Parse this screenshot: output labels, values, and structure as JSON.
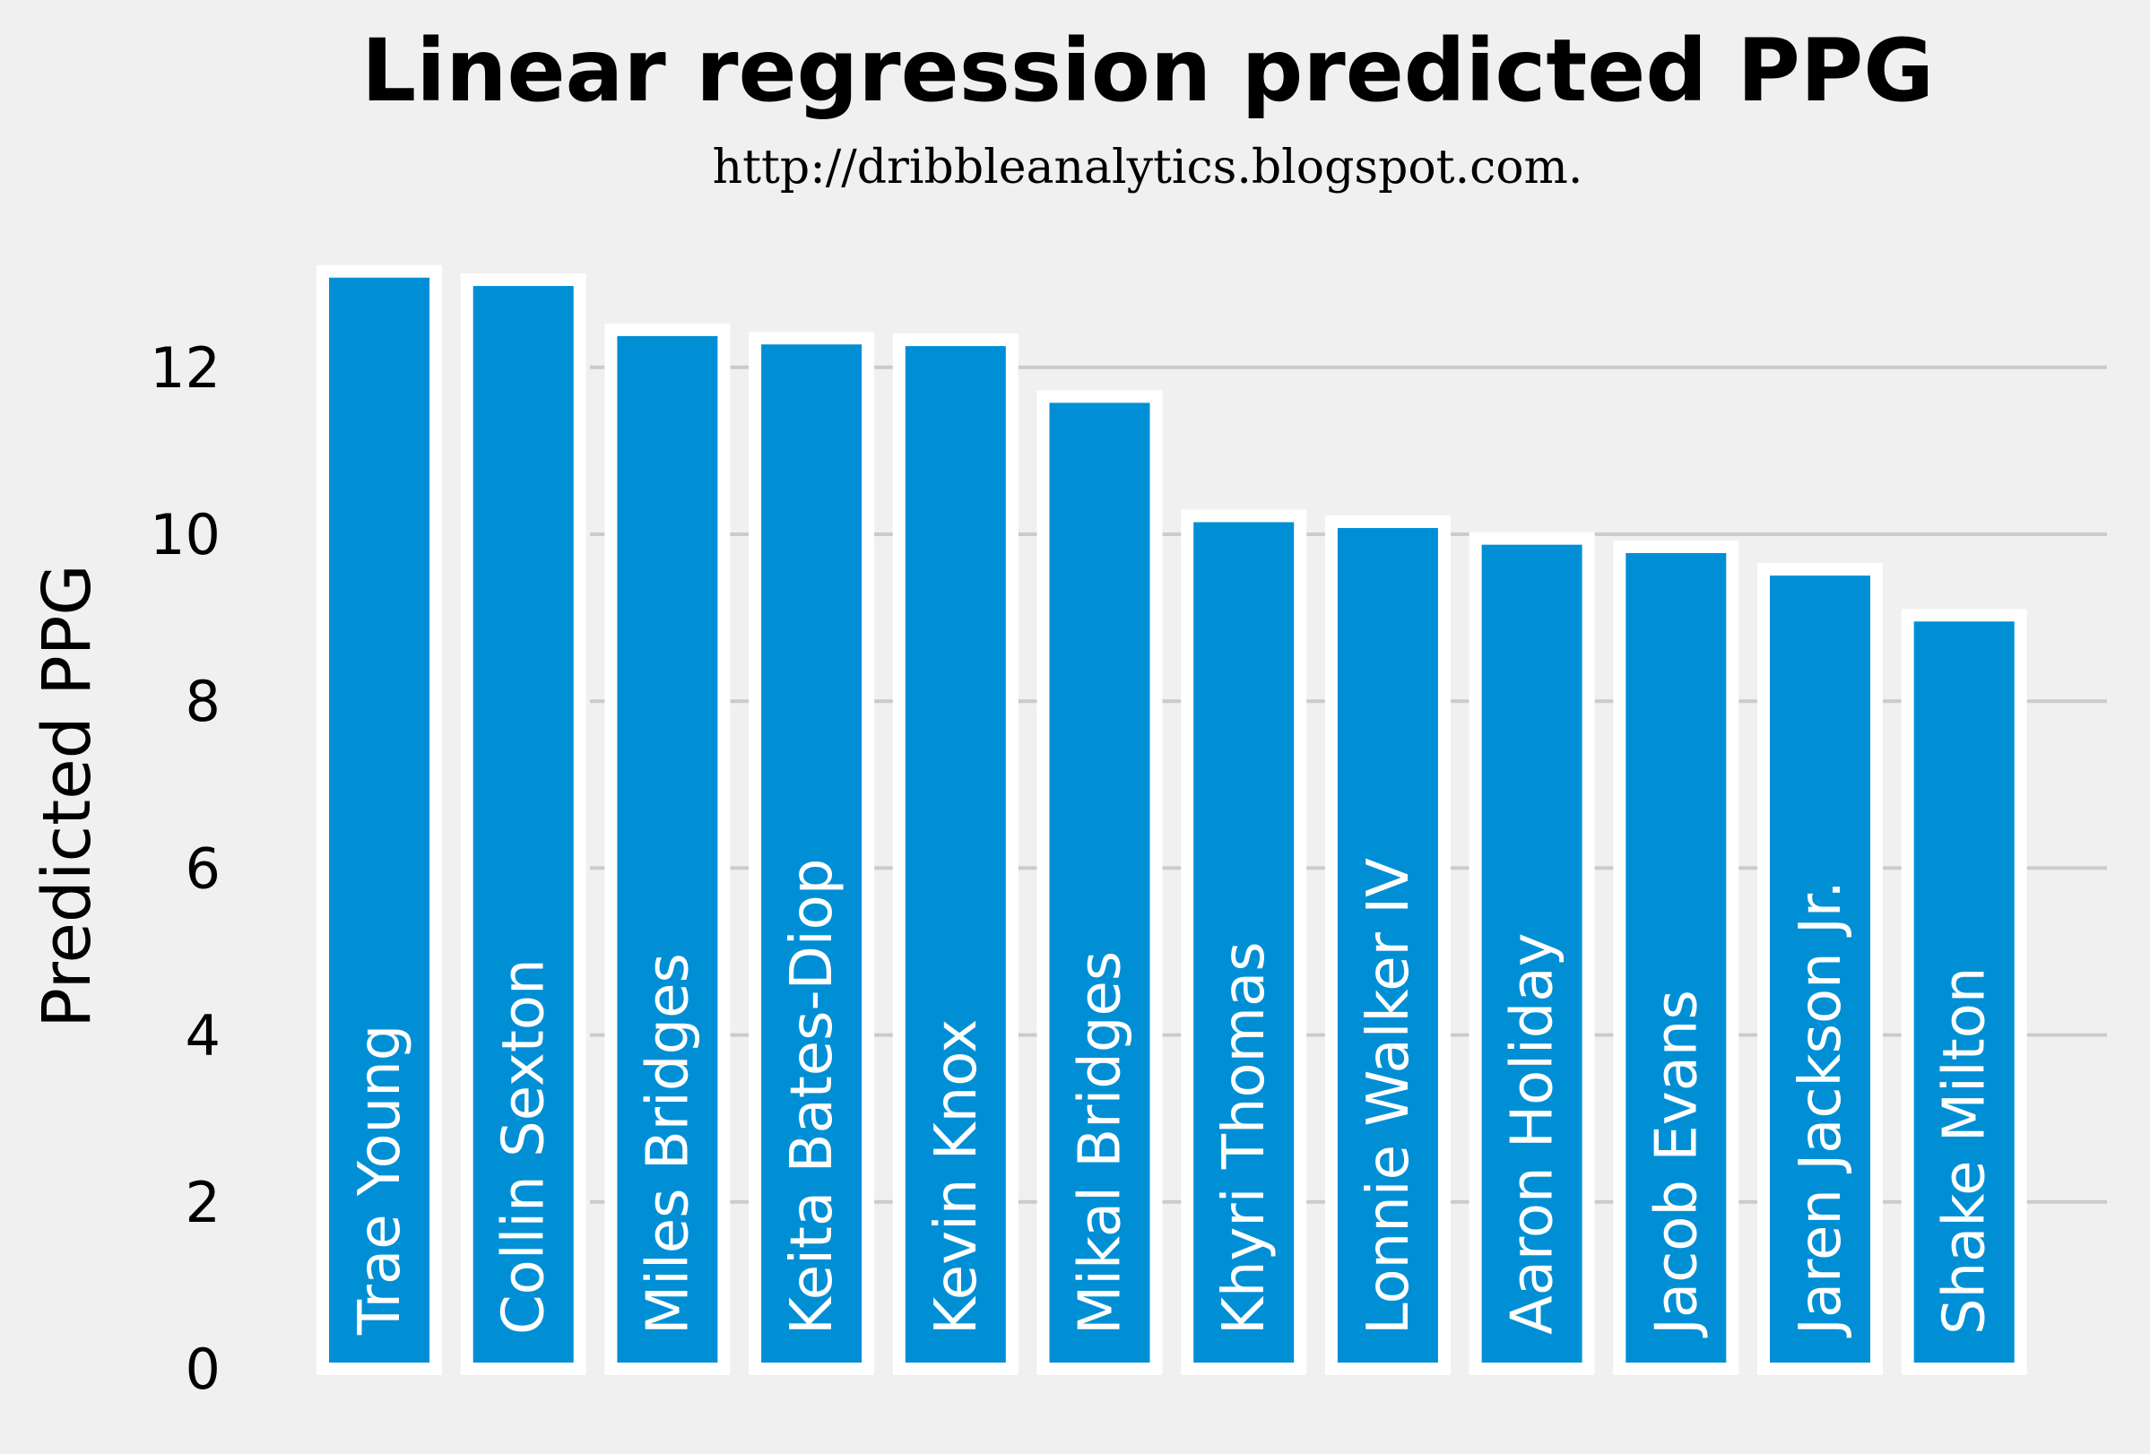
{
  "chart_data": {
    "type": "bar",
    "title": "Linear regression predicted PPG",
    "subtitle": "http://dribbleanalytics.blogspot.com.",
    "xlabel": "",
    "ylabel": "Predicted PPG",
    "ylim": [
      0,
      13.6
    ],
    "yticks": [
      "0",
      "2",
      "4",
      "6",
      "8",
      "10",
      "12"
    ],
    "grid": true,
    "bar_color": "#008fd5",
    "bar_edge_color": "#ffffff",
    "background_color": "#f0f0f0",
    "grid_color": "#cbcbcb",
    "categories": [
      "Trae Young",
      "Collin Sexton",
      "Miles Bridges",
      "Keita Bates-Diop",
      "Kevin Knox",
      "Mikal Bridges",
      "Khyri Thomas",
      "Lonnie Walker IV",
      "Aaron Holiday",
      "Jacob Evans",
      "Jaren Jackson Jr.",
      "Shake Milton"
    ],
    "values": [
      13.15,
      13.05,
      12.45,
      12.35,
      12.33,
      11.65,
      10.22,
      10.15,
      9.95,
      9.85,
      9.58,
      9.03
    ]
  }
}
